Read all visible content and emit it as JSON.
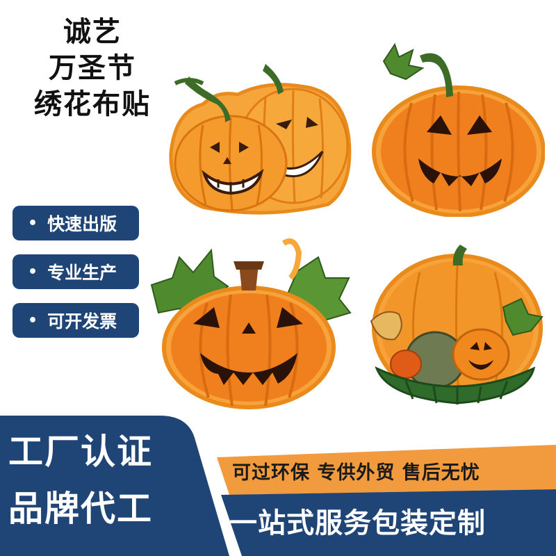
{
  "title": {
    "lines": [
      "诚艺",
      "万圣节",
      "绣花布贴"
    ]
  },
  "features": [
    "快速出版",
    "专业生产",
    "可开发票"
  ],
  "feature_bullet": "•",
  "products": [
    {
      "name": "double-pumpkin-patch",
      "icon": "two-jack-o-lanterns-icon"
    },
    {
      "name": "jack-o-lantern-vine-patch",
      "icon": "jack-o-lantern-icon"
    },
    {
      "name": "leafy-jack-o-lantern-patch",
      "icon": "jack-o-lantern-leaves-icon"
    },
    {
      "name": "pumpkin-harvest-basket-patch",
      "icon": "harvest-basket-icon"
    }
  ],
  "footer": {
    "left_line1": "工厂认证",
    "left_line2": "品牌代工",
    "tagline": "可过环保 专供外贸 售后无忧",
    "service": "一站式服务包装定制"
  },
  "colors": {
    "navy": "#1f4577",
    "orange_band": "#f19a3e",
    "pumpkin": "#f07f1e",
    "pumpkin_light": "#f7a83a",
    "leaf": "#4f8a2f",
    "stem": "#3d6b28"
  }
}
